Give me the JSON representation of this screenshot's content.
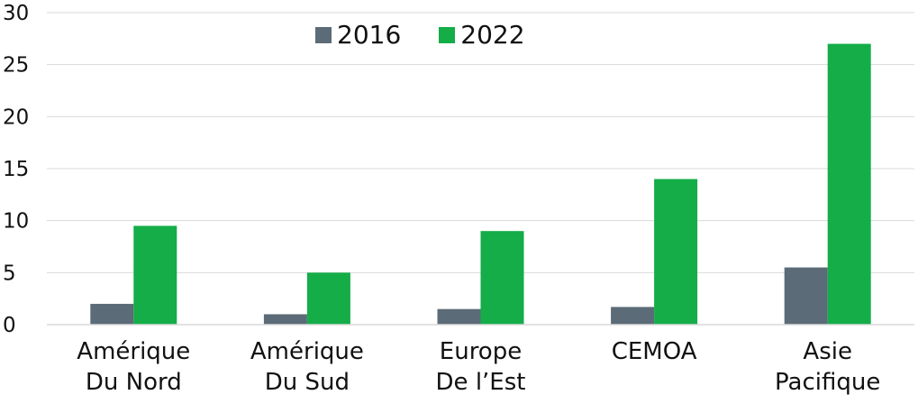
{
  "chart_data": {
    "type": "bar",
    "title": "",
    "xlabel": "",
    "ylabel": "",
    "categories": [
      [
        "Amérique",
        "Du Nord"
      ],
      [
        "Amérique",
        "Du Sud"
      ],
      [
        "Europe",
        "De l’Est"
      ],
      [
        "CEMOA"
      ],
      [
        "Asie",
        "Pacifique"
      ]
    ],
    "series": [
      {
        "name": "2016",
        "color": "#5b6b77",
        "values": [
          2,
          1,
          1.5,
          1.7,
          5.5
        ]
      },
      {
        "name": "2022",
        "color": "#14ad48",
        "values": [
          9.5,
          5,
          9,
          14,
          27
        ]
      }
    ],
    "ylim": [
      0,
      30
    ],
    "yticks": [
      0,
      5,
      10,
      15,
      20,
      25,
      30
    ],
    "grid": true,
    "legend_position": "top"
  }
}
